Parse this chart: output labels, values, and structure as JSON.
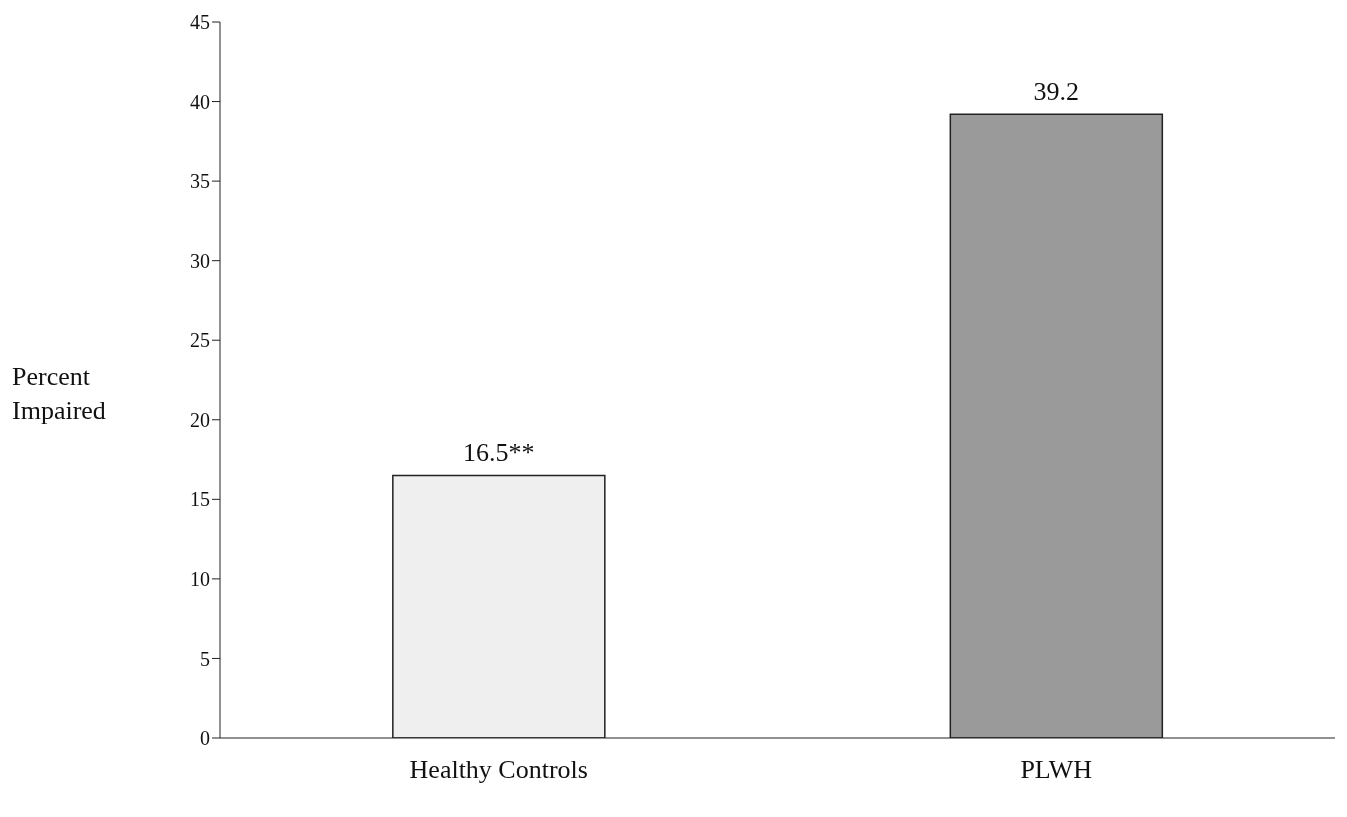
{
  "chart_data": {
    "type": "bar",
    "ylabel": "Percent Impaired",
    "categories": [
      "Healthy Controls",
      "PLWH"
    ],
    "values": [
      16.5,
      39.2
    ],
    "colors": [
      "#efefef",
      "#9a9a9a"
    ],
    "value_labels": [
      "16.5**",
      "39.2"
    ],
    "ylim": [
      0,
      45
    ],
    "yticks": [
      0,
      5,
      10,
      15,
      20,
      25,
      30,
      35,
      40,
      45
    ],
    "grid": false,
    "legend": false
  }
}
